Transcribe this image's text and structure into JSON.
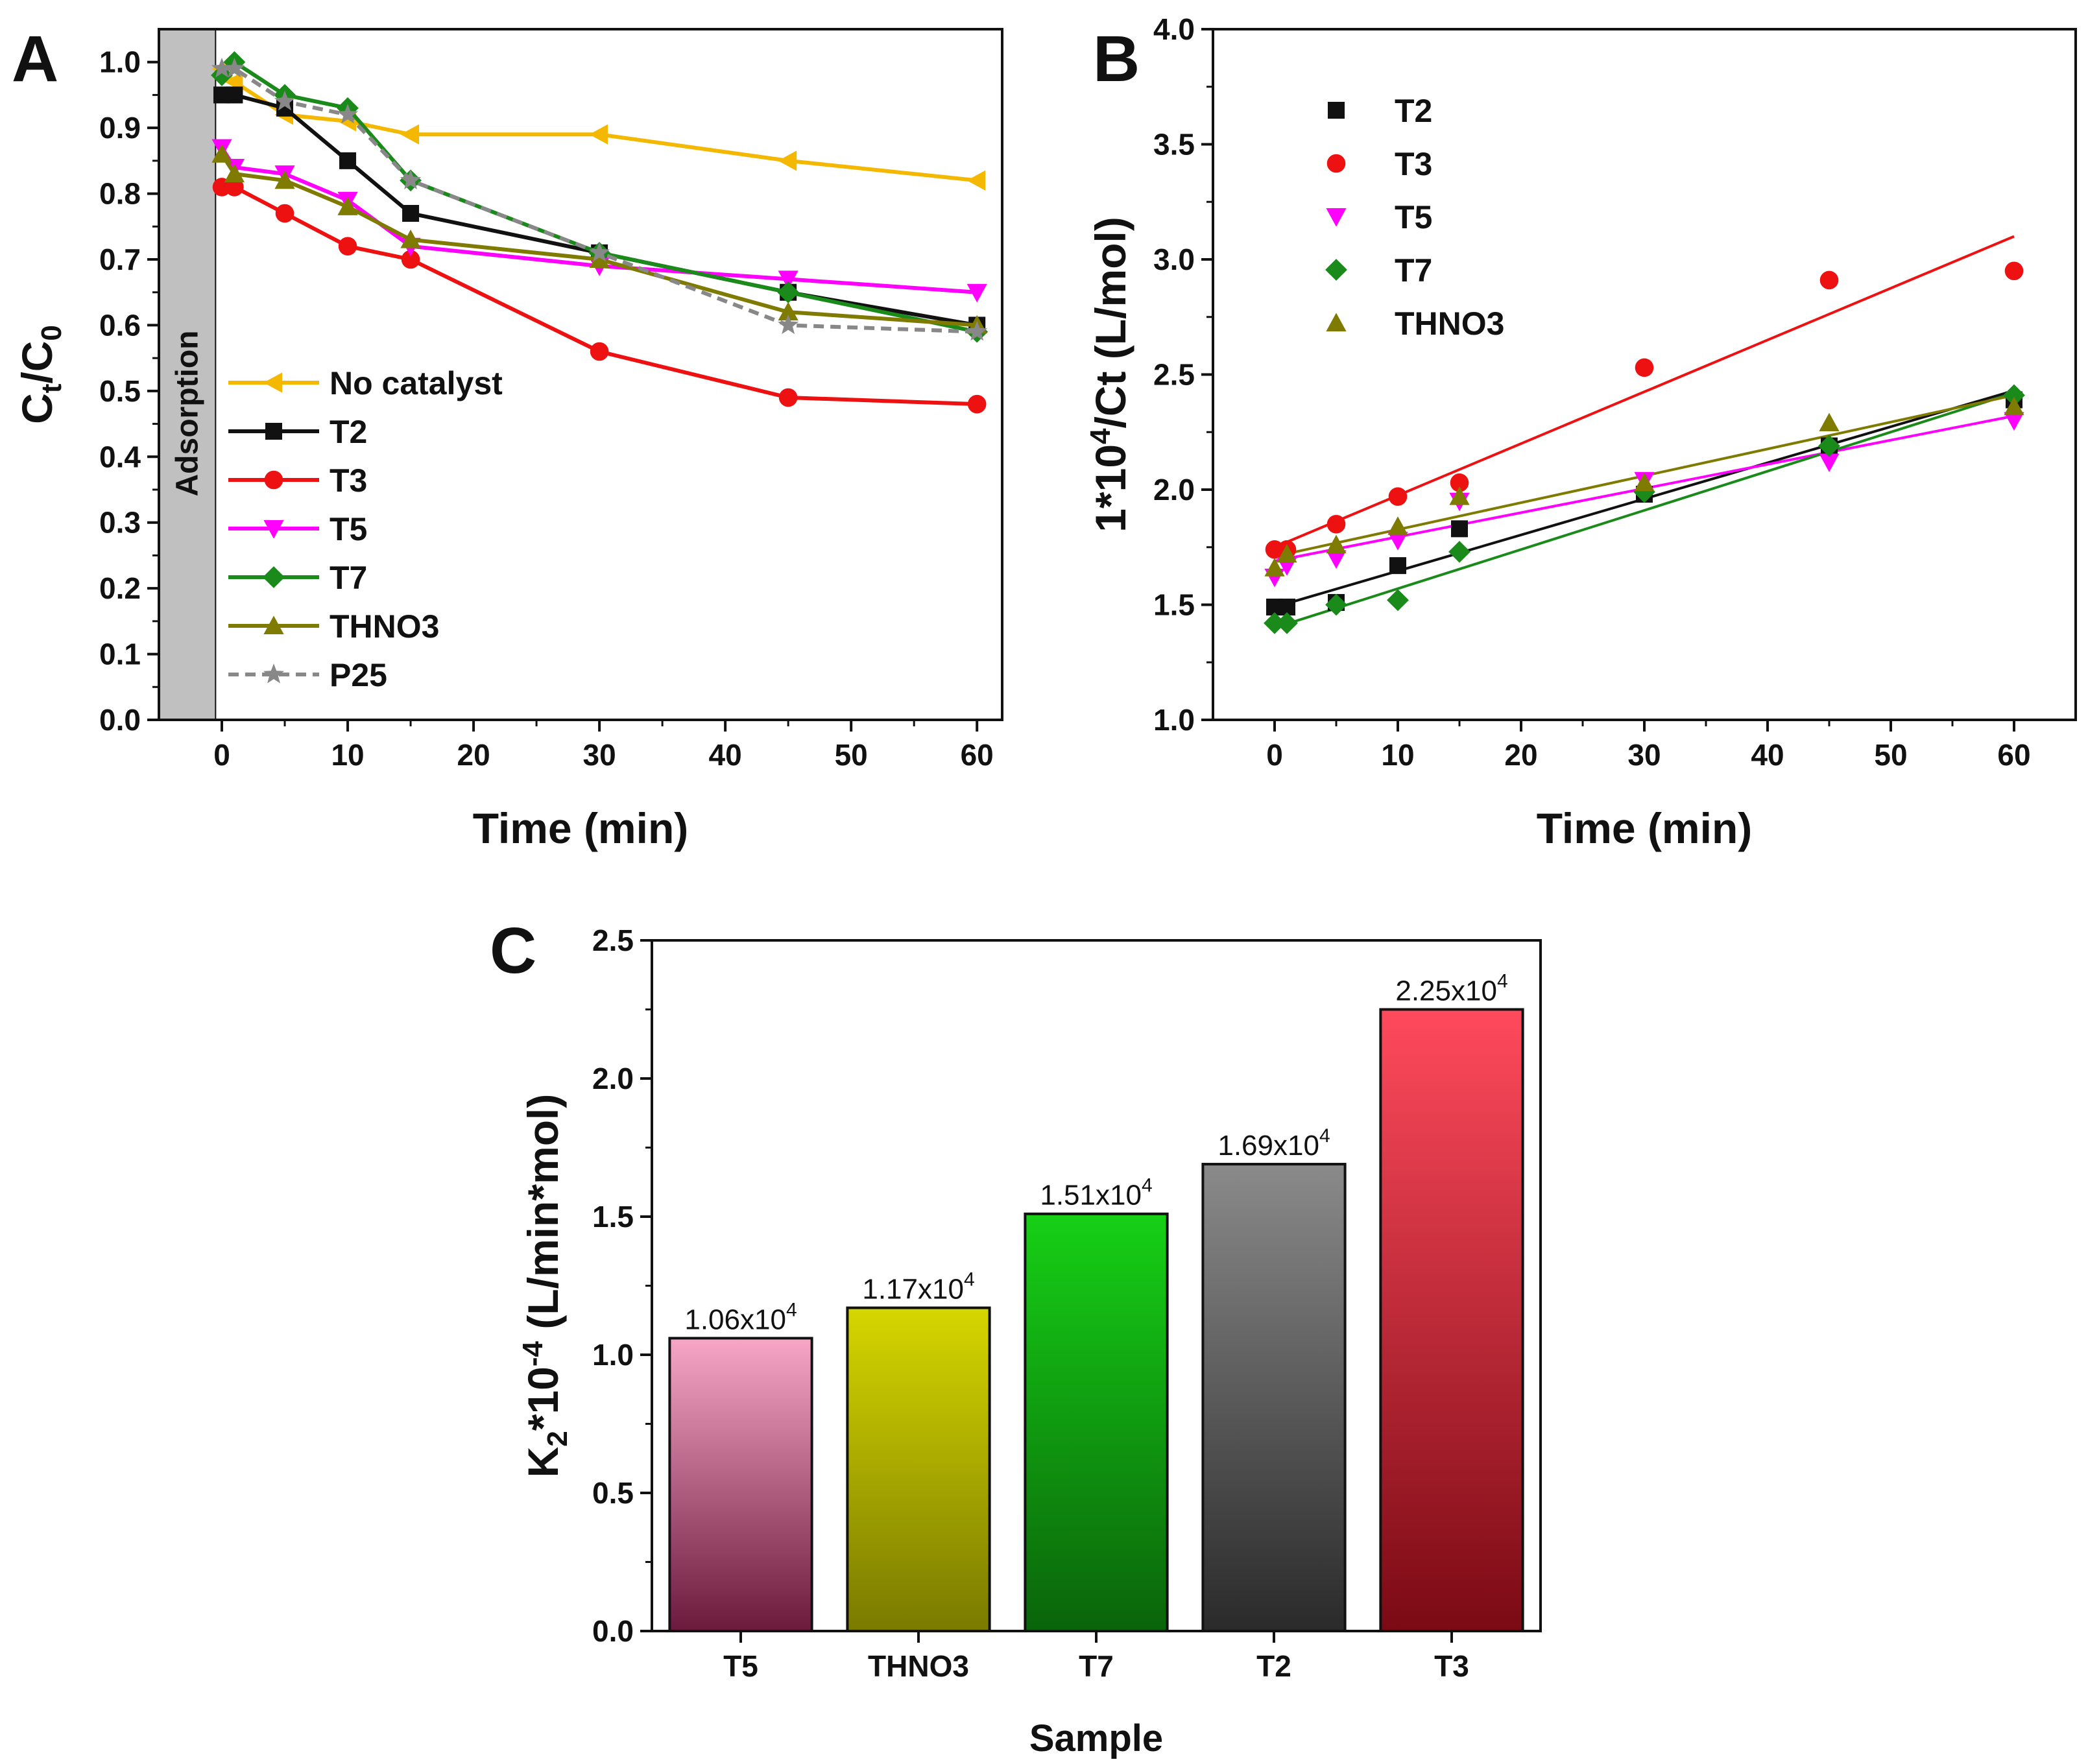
{
  "chart_data": [
    {
      "panel": "A",
      "type": "line",
      "xlabel": "Time (min)",
      "ylabel_main": "C",
      "ylabel_sub1": "t",
      "ylabel_mid": "/C",
      "ylabel_sub2": "0",
      "xlim": [
        -5,
        62
      ],
      "ylim": [
        0.0,
        1.05
      ],
      "xticks": [
        0,
        10,
        20,
        30,
        40,
        50,
        60
      ],
      "yticks": [
        "0.0",
        "0.1",
        "0.2",
        "0.3",
        "0.4",
        "0.5",
        "0.6",
        "0.7",
        "0.8",
        "0.9",
        "1.0"
      ],
      "shaded_region": {
        "x": [
          -5,
          -0.5
        ],
        "label": "Adsorption",
        "color": "#c0c0c0"
      },
      "x": [
        0,
        1,
        5,
        10,
        15,
        30,
        45,
        60
      ],
      "series": [
        {
          "name": "No catalyst",
          "color": "#f5b800",
          "marker": "triangle-left",
          "dashed": false,
          "values": [
            0.99,
            0.97,
            0.92,
            0.91,
            0.89,
            0.89,
            0.85,
            0.82
          ]
        },
        {
          "name": "T2",
          "color": "#111111",
          "marker": "square",
          "dashed": false,
          "values": [
            0.95,
            0.95,
            0.93,
            0.85,
            0.77,
            0.71,
            0.65,
            0.6
          ]
        },
        {
          "name": "T3",
          "color": "#ee1111",
          "marker": "circle",
          "dashed": false,
          "values": [
            0.81,
            0.81,
            0.77,
            0.72,
            0.7,
            0.56,
            0.49,
            0.48
          ]
        },
        {
          "name": "T5",
          "color": "#ff00ff",
          "marker": "triangle-down",
          "dashed": false,
          "values": [
            0.87,
            0.84,
            0.83,
            0.79,
            0.72,
            0.69,
            0.67,
            0.65
          ]
        },
        {
          "name": "T7",
          "color": "#1a8a1a",
          "marker": "diamond",
          "dashed": false,
          "values": [
            0.98,
            1.0,
            0.95,
            0.93,
            0.82,
            0.71,
            0.65,
            0.59
          ]
        },
        {
          "name": "THNO3",
          "color": "#7f7a00",
          "marker": "triangle-up",
          "dashed": false,
          "values": [
            0.86,
            0.83,
            0.82,
            0.78,
            0.73,
            0.7,
            0.62,
            0.6
          ]
        },
        {
          "name": "P25",
          "color": "#888888",
          "marker": "star",
          "dashed": true,
          "values": [
            0.99,
            0.99,
            0.94,
            0.92,
            0.82,
            0.71,
            0.6,
            0.59
          ]
        }
      ]
    },
    {
      "panel": "B",
      "type": "scatter",
      "xlabel": "Time (min)",
      "ylabel_pre": "1*10",
      "ylabel_sup": "4",
      "ylabel_post": "/Ct (L/mol)",
      "xlim": [
        -5,
        65
      ],
      "ylim": [
        1.0,
        4.0
      ],
      "xticks": [
        0,
        10,
        20,
        30,
        40,
        50,
        60
      ],
      "yticks": [
        "1.0",
        "1.5",
        "2.0",
        "2.5",
        "3.0",
        "3.5",
        "4.0"
      ],
      "x": [
        0,
        1,
        5,
        10,
        15,
        30,
        45,
        60
      ],
      "series": [
        {
          "name": "T2",
          "color": "#111111",
          "marker": "square",
          "values": [
            1.49,
            1.49,
            1.51,
            1.67,
            1.83,
            1.98,
            2.19,
            2.39
          ],
          "fit": [
            1.49,
            2.43
          ]
        },
        {
          "name": "T3",
          "color": "#ee1111",
          "marker": "circle",
          "values": [
            1.74,
            1.74,
            1.85,
            1.97,
            2.03,
            2.53,
            2.91,
            2.95
          ],
          "fit": [
            1.75,
            3.1
          ]
        },
        {
          "name": "T5",
          "color": "#ff00ff",
          "marker": "triangle-down",
          "values": [
            1.62,
            1.67,
            1.7,
            1.78,
            1.95,
            2.04,
            2.12,
            2.3
          ],
          "fit": [
            1.69,
            2.32
          ]
        },
        {
          "name": "T7",
          "color": "#1a8a1a",
          "marker": "diamond",
          "values": [
            1.42,
            1.42,
            1.5,
            1.52,
            1.73,
            1.99,
            2.19,
            2.41
          ],
          "fit": [
            1.4,
            2.42
          ]
        },
        {
          "name": "THNO3",
          "color": "#7f7a00",
          "marker": "triangle-up",
          "values": [
            1.66,
            1.72,
            1.76,
            1.84,
            1.97,
            2.03,
            2.29,
            2.36
          ],
          "fit": [
            1.71,
            2.41
          ]
        }
      ]
    },
    {
      "panel": "C",
      "type": "bar",
      "xlabel": "Sample",
      "ylabel_pre": "K",
      "ylabel_sub": "2",
      "ylabel_mid": "*10",
      "ylabel_sup": "-4",
      "ylabel_post": " (L/min*mol)",
      "ylim": [
        0.0,
        2.5
      ],
      "yticks": [
        "0.0",
        "0.5",
        "1.0",
        "1.5",
        "2.0",
        "2.5"
      ],
      "categories": [
        "T5",
        "THNO3",
        "T7",
        "T2",
        "T3"
      ],
      "values": [
        1.06,
        1.17,
        1.51,
        1.69,
        2.25
      ],
      "labels": [
        "1.06x10",
        "1.17x10",
        "1.51x10",
        "1.69x10",
        "2.25x10"
      ],
      "label_sup": "4",
      "gradients": [
        {
          "top": "#f7a6c6",
          "bottom": "#6b1a3c"
        },
        {
          "top": "#d6d600",
          "bottom": "#7a7a00"
        },
        {
          "top": "#16d016",
          "bottom": "#0a640a"
        },
        {
          "top": "#8a8a8a",
          "bottom": "#2a2a2a"
        },
        {
          "top": "#ff4a5c",
          "bottom": "#7a0a14"
        }
      ]
    }
  ],
  "panel_labels": {
    "a": "A",
    "b": "B",
    "c": "C"
  }
}
